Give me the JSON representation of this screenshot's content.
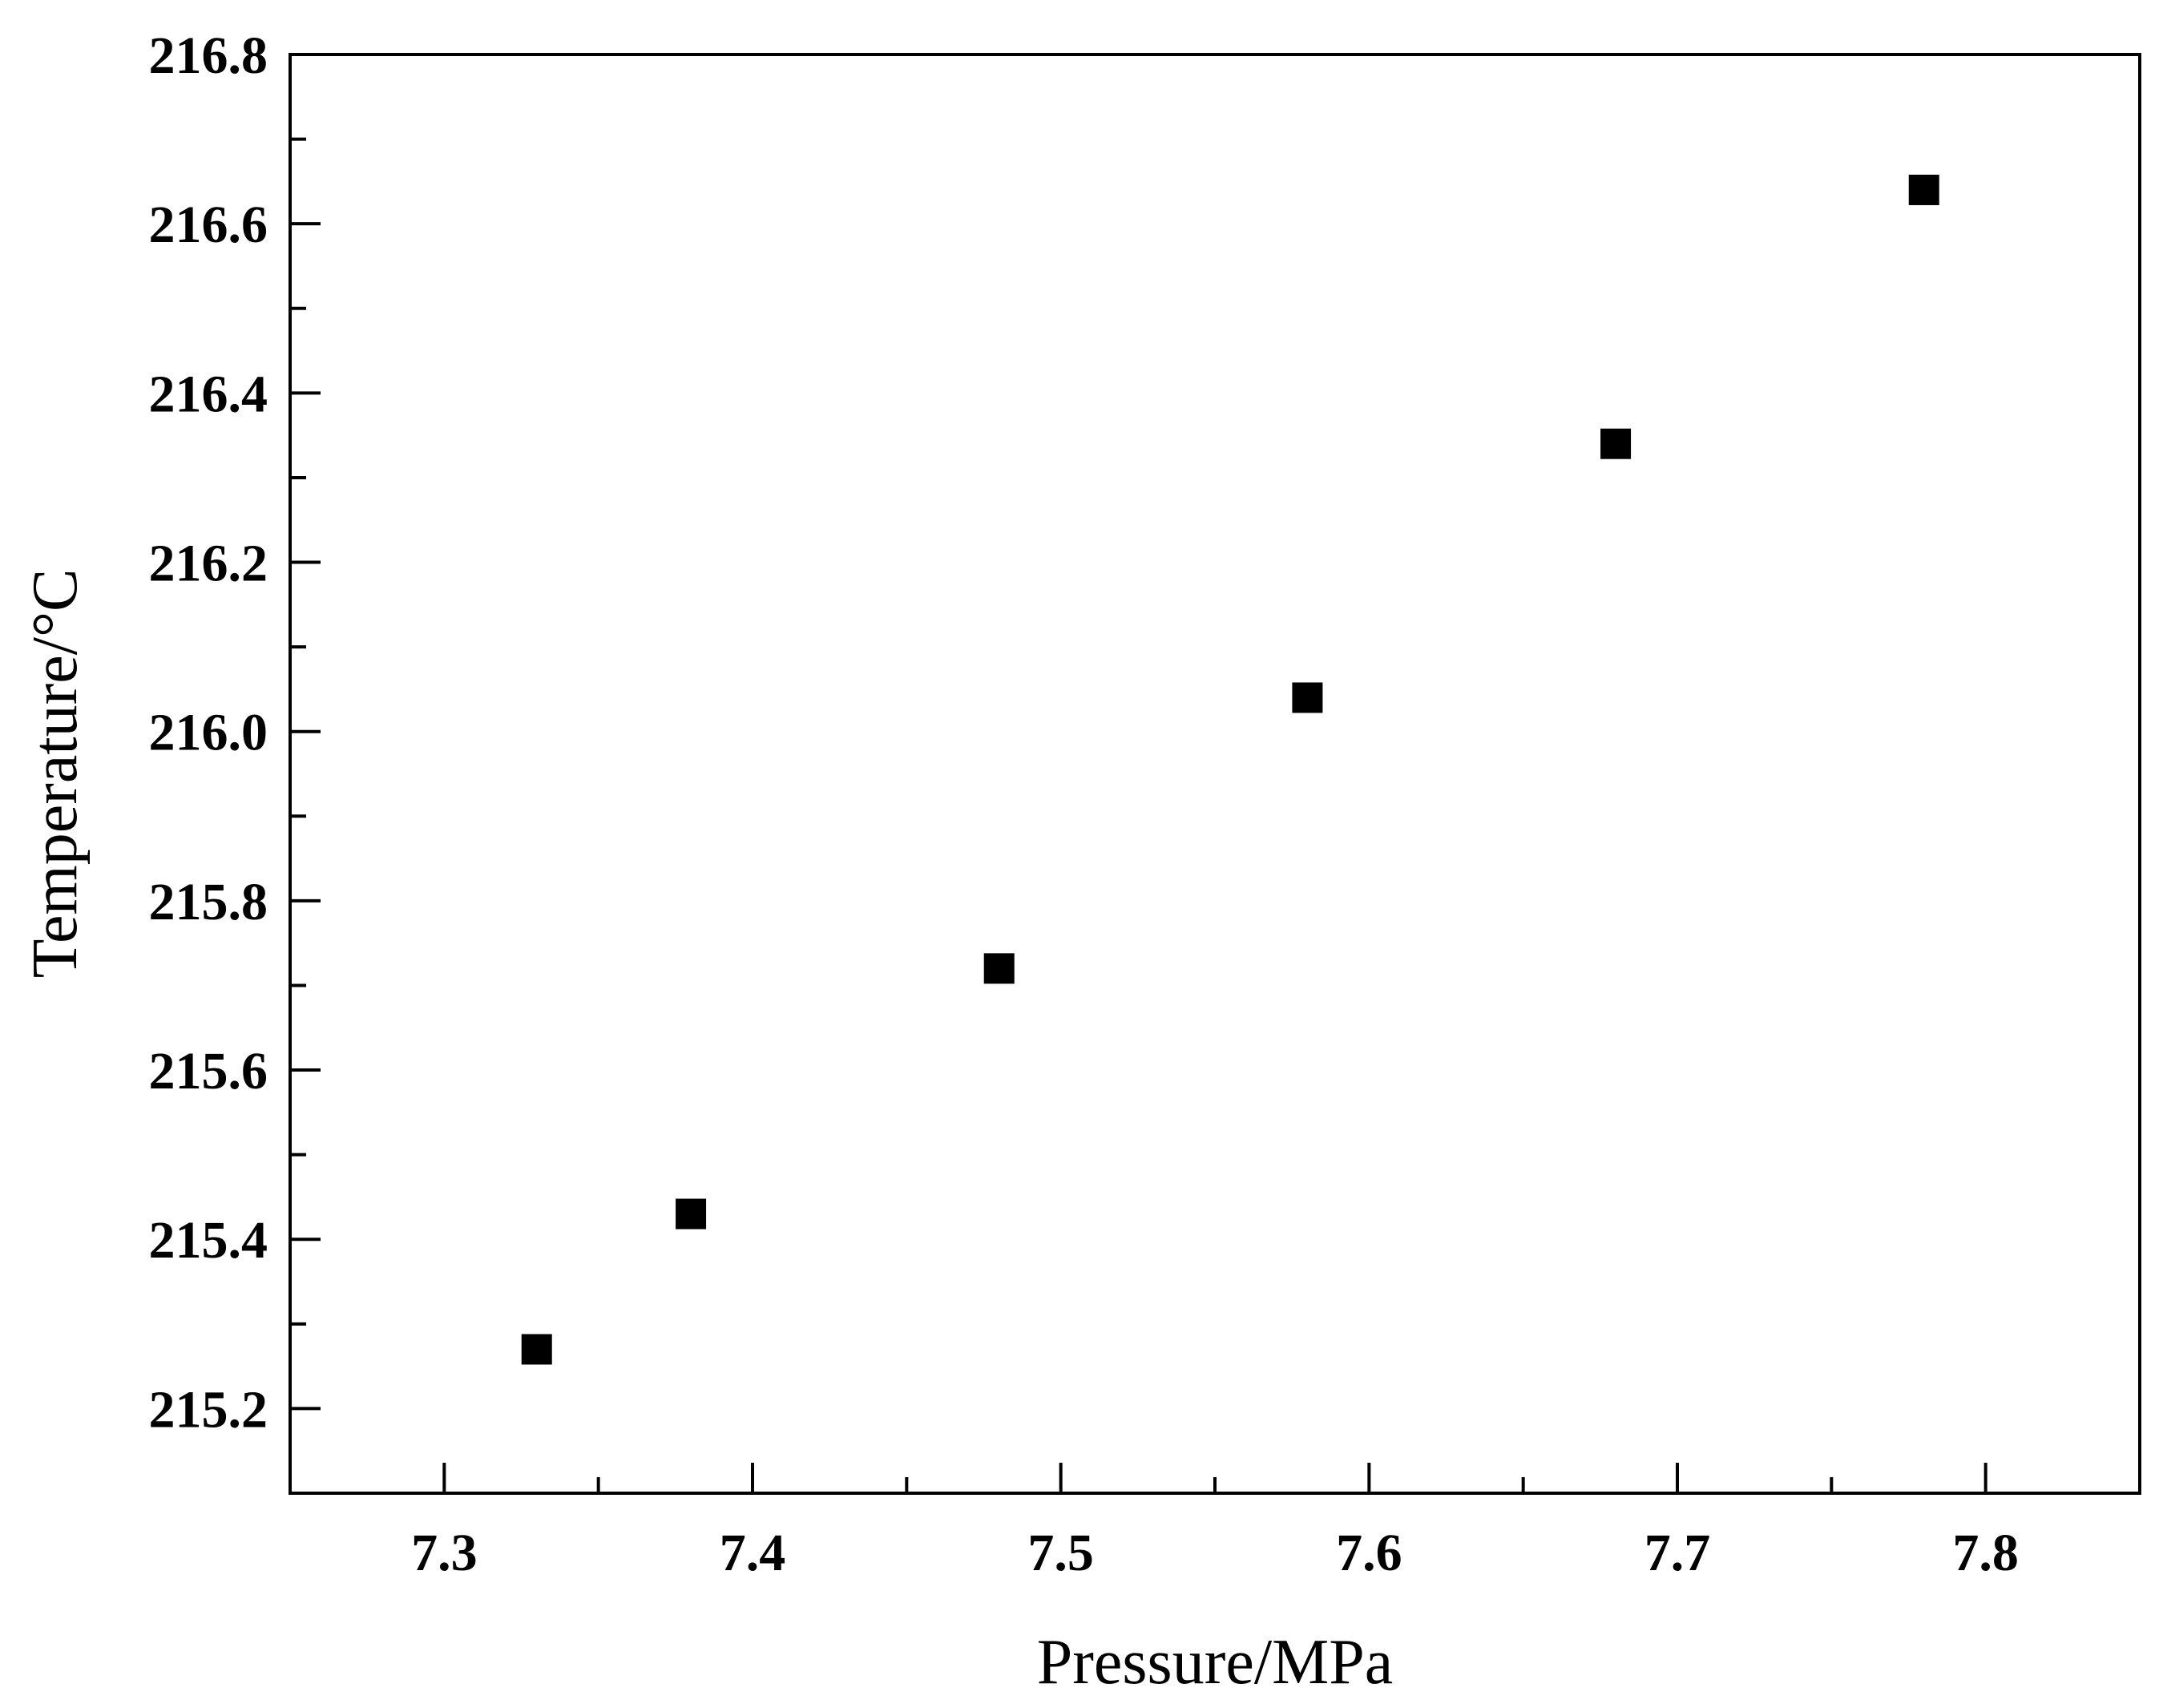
{
  "chart_data": {
    "type": "scatter",
    "title": "",
    "xlabel": "Pressure/MPa",
    "ylabel": "Temperature/°C",
    "xlim": [
      7.25,
      7.85
    ],
    "ylim": [
      215.1,
      216.8
    ],
    "xticks": [
      7.3,
      7.4,
      7.5,
      7.6,
      7.7,
      7.8
    ],
    "xtick_labels": [
      "7.3",
      "7.4",
      "7.5",
      "7.6",
      "7.7",
      "7.8"
    ],
    "yticks": [
      215.2,
      215.4,
      215.6,
      215.8,
      216.0,
      216.2,
      216.4,
      216.6,
      216.8
    ],
    "ytick_labels": [
      "215.2",
      "215.4",
      "215.6",
      "215.8",
      "216.0",
      "216.2",
      "216.4",
      "216.6",
      "216.8"
    ],
    "grid": false,
    "marker": "square",
    "marker_color": "#000000",
    "series": [
      {
        "x": [
          7.33,
          7.38,
          7.48,
          7.58,
          7.68,
          7.78
        ],
        "y": [
          215.27,
          215.43,
          215.72,
          216.04,
          216.34,
          216.64
        ]
      }
    ]
  }
}
